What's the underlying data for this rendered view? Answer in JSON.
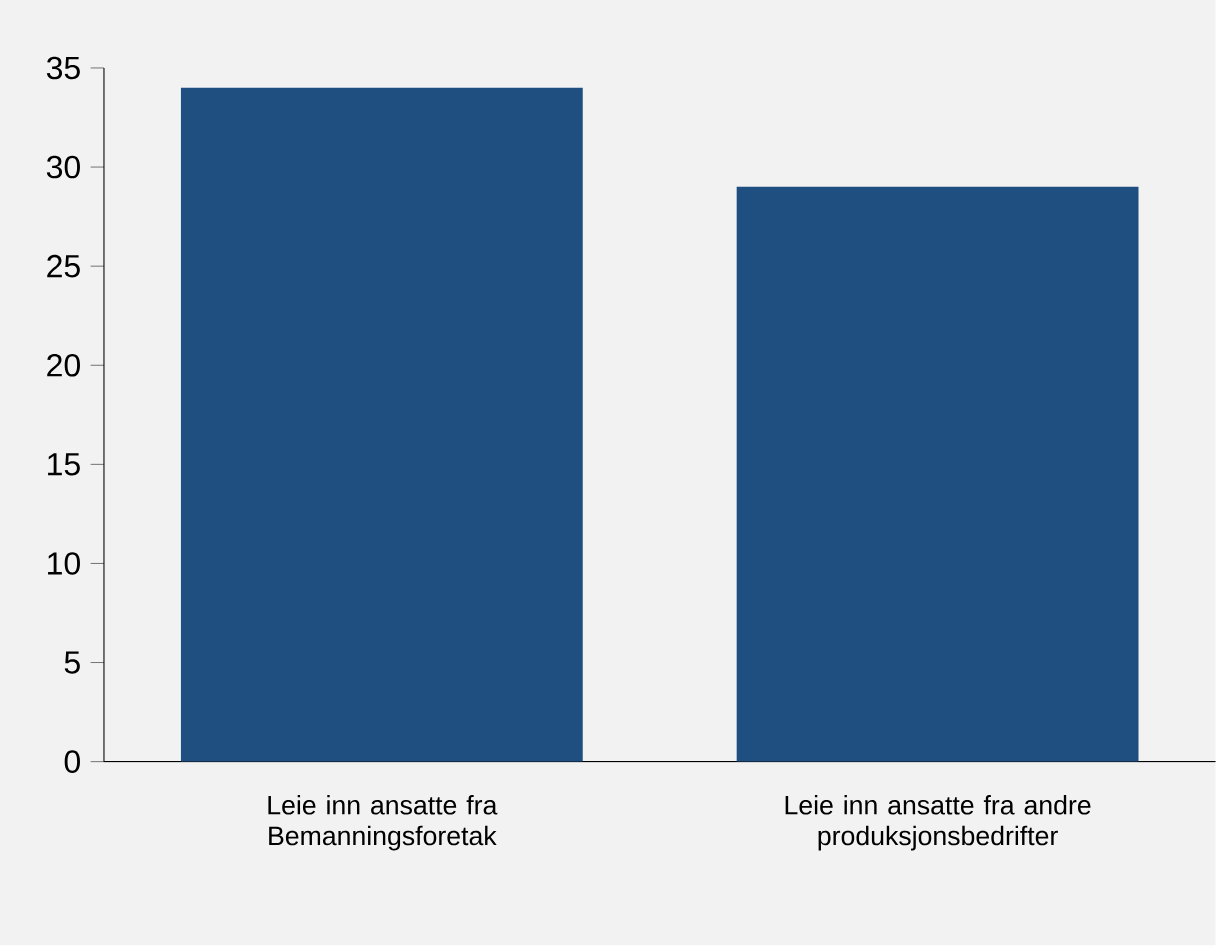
{
  "chart_data": {
    "type": "bar",
    "categories": [
      "Leie inn ansatte fra Bemanningsforetak",
      "Leie inn ansatte fra andre produksjonsbedrifter"
    ],
    "values": [
      34,
      29
    ],
    "color": "#1f4e80",
    "ylim": [
      0,
      35
    ],
    "yticks": [
      0,
      5,
      10,
      15,
      20,
      25,
      30,
      35
    ],
    "grid": false
  }
}
